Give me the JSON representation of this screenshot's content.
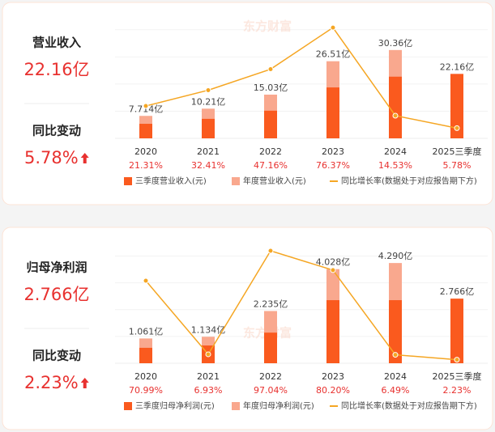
{
  "watermark": "东方财富",
  "summaries": [
    {
      "title": "营业收入",
      "value": "22.16亿",
      "change_title": "同比变动",
      "change_value": "5.78%"
    },
    {
      "title": "归母净利润",
      "value": "2.766亿",
      "change_title": "同比变动",
      "change_value": "2.23%"
    }
  ],
  "chart_data": [
    {
      "type": "bar",
      "categories": [
        "2020",
        "2021",
        "2022",
        "2023",
        "2024",
        "2025三季度"
      ],
      "series": [
        {
          "name": "三季度营业收入(元)",
          "color": "#fa5a1e",
          "values": [
            5.0,
            6.7,
            9.5,
            17.5,
            21.2,
            22.16
          ],
          "value_labels": [
            null,
            null,
            null,
            null,
            null,
            "22.16亿"
          ]
        },
        {
          "name": "年度营业收入(元)",
          "color": "#f9a88e",
          "values": [
            7.714,
            10.21,
            15.03,
            26.51,
            30.36,
            null
          ],
          "value_labels": [
            "7.714亿",
            "10.21亿",
            "15.03亿",
            "26.51亿",
            "30.36亿",
            null
          ]
        },
        {
          "name": "同比增长率(数据处于对应报告期下方)",
          "color": "#f5a623",
          "type": "line",
          "axis": "y2",
          "values": [
            21.31,
            32.41,
            47.16,
            76.37,
            14.53,
            5.78
          ],
          "value_labels": [
            "21.31%",
            "32.41%",
            "47.16%",
            "76.37%",
            "14.53%",
            "5.78%"
          ]
        }
      ],
      "ylim": [
        0,
        42
      ],
      "y2lim": [
        -1.4,
        84.4
      ]
    },
    {
      "type": "bar",
      "categories": [
        "2020",
        "2021",
        "2022",
        "2023",
        "2024",
        "2025三季度"
      ],
      "series": [
        {
          "name": "三季度归母净利润(元)",
          "color": "#fa5a1e",
          "values": [
            0.66,
            0.76,
            1.31,
            2.7,
            2.7,
            2.766
          ],
          "value_labels": [
            null,
            null,
            null,
            null,
            null,
            "2.766亿"
          ]
        },
        {
          "name": "年度归母净利润(元)",
          "color": "#f9a88e",
          "values": [
            1.061,
            1.134,
            2.235,
            4.028,
            4.29,
            null
          ],
          "value_labels": [
            "1.061亿",
            "1.134亿",
            "2.235亿",
            "4.028亿",
            "4.290亿",
            null
          ]
        },
        {
          "name": "同比增长率(数据处于对应报告期下方)",
          "color": "#f5a623",
          "type": "line",
          "axis": "y2",
          "values": [
            70.99,
            6.93,
            97.04,
            80.2,
            6.49,
            2.23
          ],
          "value_labels": [
            "70.99%",
            "6.93%",
            "97.04%",
            "80.20%",
            "6.49%",
            "2.23%"
          ]
        }
      ],
      "ylim": [
        0,
        5.16
      ],
      "y2lim": [
        -0.85,
        104.1
      ]
    }
  ]
}
